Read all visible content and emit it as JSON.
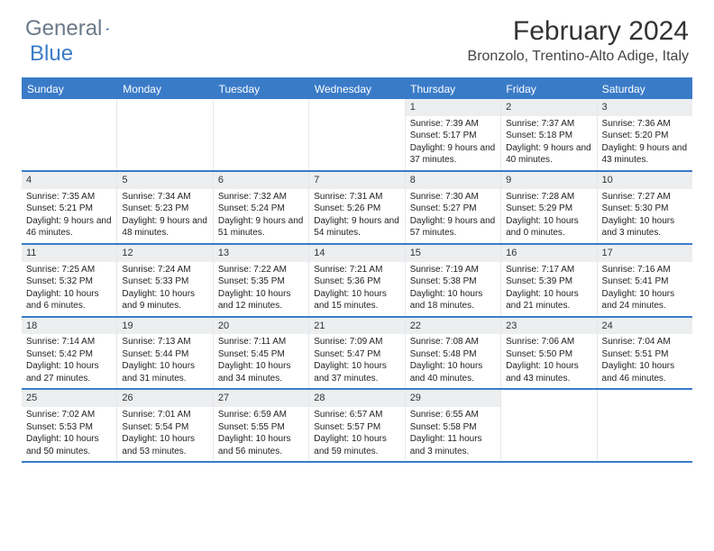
{
  "brand": {
    "word1": "General",
    "word2": "Blue"
  },
  "title": "February 2024",
  "location": "Bronzolo, Trentino-Alto Adige, Italy",
  "colors": {
    "accent": "#3a7bc8",
    "header_text": "#6b7a8a",
    "daynum_bg": "#eceef0",
    "text": "#222222",
    "background": "#ffffff"
  },
  "typography": {
    "title_fontsize": 30,
    "location_fontsize": 16,
    "weekday_fontsize": 12,
    "cell_fontsize": 10
  },
  "weekdays": [
    "Sunday",
    "Monday",
    "Tuesday",
    "Wednesday",
    "Thursday",
    "Friday",
    "Saturday"
  ],
  "weeks": [
    [
      null,
      null,
      null,
      null,
      {
        "n": "1",
        "sr": "Sunrise: 7:39 AM",
        "ss": "Sunset: 5:17 PM",
        "dl": "Daylight: 9 hours and 37 minutes."
      },
      {
        "n": "2",
        "sr": "Sunrise: 7:37 AM",
        "ss": "Sunset: 5:18 PM",
        "dl": "Daylight: 9 hours and 40 minutes."
      },
      {
        "n": "3",
        "sr": "Sunrise: 7:36 AM",
        "ss": "Sunset: 5:20 PM",
        "dl": "Daylight: 9 hours and 43 minutes."
      }
    ],
    [
      {
        "n": "4",
        "sr": "Sunrise: 7:35 AM",
        "ss": "Sunset: 5:21 PM",
        "dl": "Daylight: 9 hours and 46 minutes."
      },
      {
        "n": "5",
        "sr": "Sunrise: 7:34 AM",
        "ss": "Sunset: 5:23 PM",
        "dl": "Daylight: 9 hours and 48 minutes."
      },
      {
        "n": "6",
        "sr": "Sunrise: 7:32 AM",
        "ss": "Sunset: 5:24 PM",
        "dl": "Daylight: 9 hours and 51 minutes."
      },
      {
        "n": "7",
        "sr": "Sunrise: 7:31 AM",
        "ss": "Sunset: 5:26 PM",
        "dl": "Daylight: 9 hours and 54 minutes."
      },
      {
        "n": "8",
        "sr": "Sunrise: 7:30 AM",
        "ss": "Sunset: 5:27 PM",
        "dl": "Daylight: 9 hours and 57 minutes."
      },
      {
        "n": "9",
        "sr": "Sunrise: 7:28 AM",
        "ss": "Sunset: 5:29 PM",
        "dl": "Daylight: 10 hours and 0 minutes."
      },
      {
        "n": "10",
        "sr": "Sunrise: 7:27 AM",
        "ss": "Sunset: 5:30 PM",
        "dl": "Daylight: 10 hours and 3 minutes."
      }
    ],
    [
      {
        "n": "11",
        "sr": "Sunrise: 7:25 AM",
        "ss": "Sunset: 5:32 PM",
        "dl": "Daylight: 10 hours and 6 minutes."
      },
      {
        "n": "12",
        "sr": "Sunrise: 7:24 AM",
        "ss": "Sunset: 5:33 PM",
        "dl": "Daylight: 10 hours and 9 minutes."
      },
      {
        "n": "13",
        "sr": "Sunrise: 7:22 AM",
        "ss": "Sunset: 5:35 PM",
        "dl": "Daylight: 10 hours and 12 minutes."
      },
      {
        "n": "14",
        "sr": "Sunrise: 7:21 AM",
        "ss": "Sunset: 5:36 PM",
        "dl": "Daylight: 10 hours and 15 minutes."
      },
      {
        "n": "15",
        "sr": "Sunrise: 7:19 AM",
        "ss": "Sunset: 5:38 PM",
        "dl": "Daylight: 10 hours and 18 minutes."
      },
      {
        "n": "16",
        "sr": "Sunrise: 7:17 AM",
        "ss": "Sunset: 5:39 PM",
        "dl": "Daylight: 10 hours and 21 minutes."
      },
      {
        "n": "17",
        "sr": "Sunrise: 7:16 AM",
        "ss": "Sunset: 5:41 PM",
        "dl": "Daylight: 10 hours and 24 minutes."
      }
    ],
    [
      {
        "n": "18",
        "sr": "Sunrise: 7:14 AM",
        "ss": "Sunset: 5:42 PM",
        "dl": "Daylight: 10 hours and 27 minutes."
      },
      {
        "n": "19",
        "sr": "Sunrise: 7:13 AM",
        "ss": "Sunset: 5:44 PM",
        "dl": "Daylight: 10 hours and 31 minutes."
      },
      {
        "n": "20",
        "sr": "Sunrise: 7:11 AM",
        "ss": "Sunset: 5:45 PM",
        "dl": "Daylight: 10 hours and 34 minutes."
      },
      {
        "n": "21",
        "sr": "Sunrise: 7:09 AM",
        "ss": "Sunset: 5:47 PM",
        "dl": "Daylight: 10 hours and 37 minutes."
      },
      {
        "n": "22",
        "sr": "Sunrise: 7:08 AM",
        "ss": "Sunset: 5:48 PM",
        "dl": "Daylight: 10 hours and 40 minutes."
      },
      {
        "n": "23",
        "sr": "Sunrise: 7:06 AM",
        "ss": "Sunset: 5:50 PM",
        "dl": "Daylight: 10 hours and 43 minutes."
      },
      {
        "n": "24",
        "sr": "Sunrise: 7:04 AM",
        "ss": "Sunset: 5:51 PM",
        "dl": "Daylight: 10 hours and 46 minutes."
      }
    ],
    [
      {
        "n": "25",
        "sr": "Sunrise: 7:02 AM",
        "ss": "Sunset: 5:53 PM",
        "dl": "Daylight: 10 hours and 50 minutes."
      },
      {
        "n": "26",
        "sr": "Sunrise: 7:01 AM",
        "ss": "Sunset: 5:54 PM",
        "dl": "Daylight: 10 hours and 53 minutes."
      },
      {
        "n": "27",
        "sr": "Sunrise: 6:59 AM",
        "ss": "Sunset: 5:55 PM",
        "dl": "Daylight: 10 hours and 56 minutes."
      },
      {
        "n": "28",
        "sr": "Sunrise: 6:57 AM",
        "ss": "Sunset: 5:57 PM",
        "dl": "Daylight: 10 hours and 59 minutes."
      },
      {
        "n": "29",
        "sr": "Sunrise: 6:55 AM",
        "ss": "Sunset: 5:58 PM",
        "dl": "Daylight: 11 hours and 3 minutes."
      },
      null,
      null
    ]
  ]
}
